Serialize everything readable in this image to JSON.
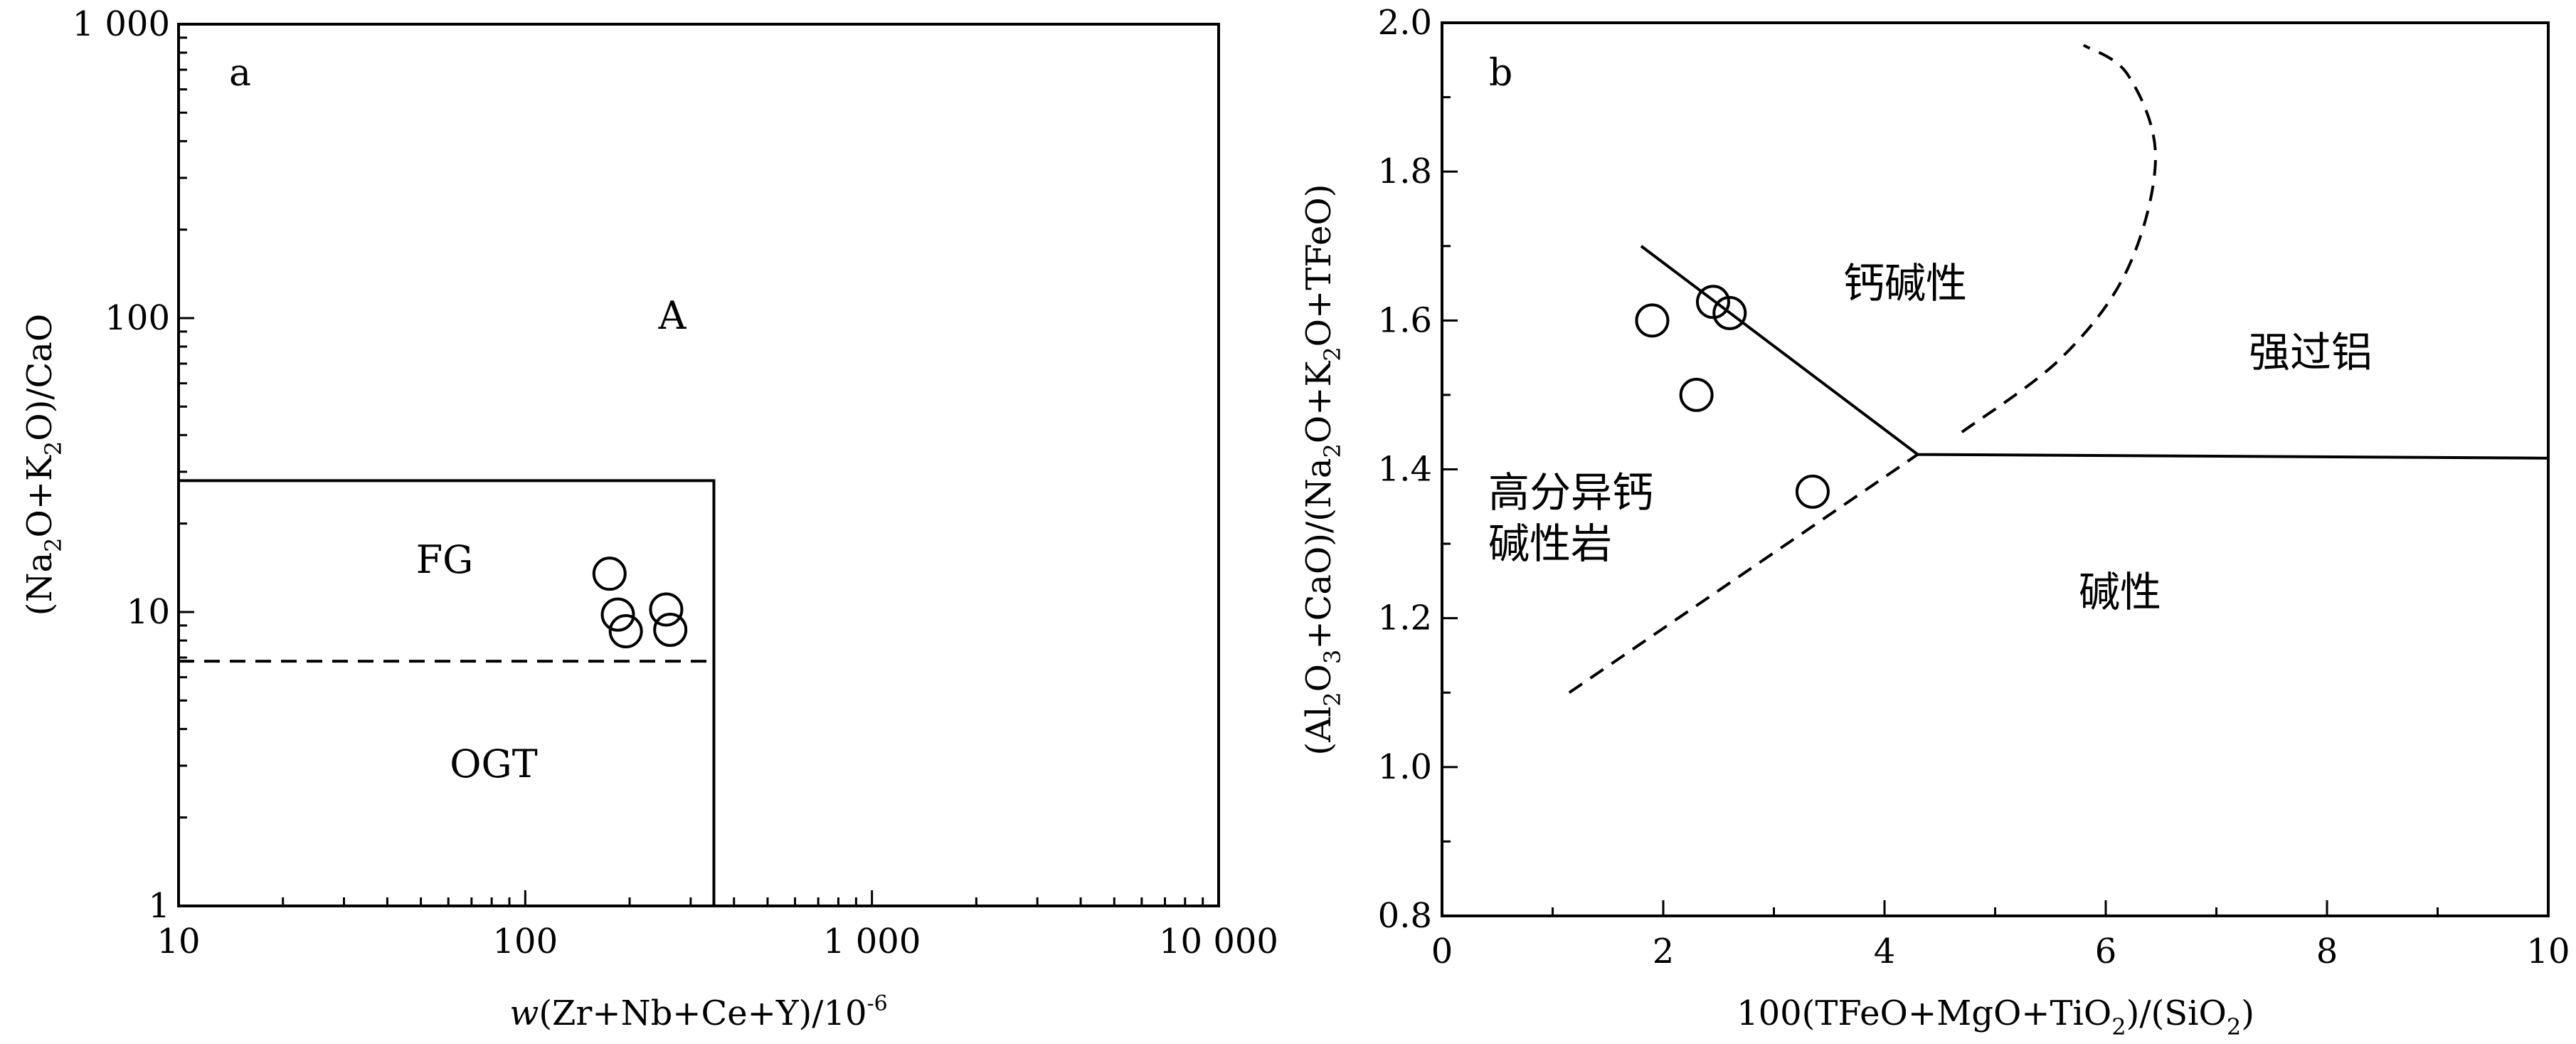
{
  "chart_data": [
    {
      "panel": "a",
      "type": "scatter",
      "xscale": "log",
      "yscale": "log",
      "xlim": [
        10,
        10000
      ],
      "ylim": [
        1,
        1000
      ],
      "x_ticks": [
        "10",
        "100",
        "1 000",
        "10 000"
      ],
      "y_ticks": [
        "1",
        "10",
        "100",
        "1 000"
      ],
      "xlabel": {
        "prefix": "w",
        "body": "(Zr+Nb+Ce+Y)/10",
        "sup": "-6"
      },
      "ylabel": [
        "(Na",
        "2",
        "O+K",
        "2",
        "O)/CaO"
      ],
      "regions": [
        "A",
        "FG",
        "OGT"
      ],
      "boundaries": [
        {
          "style": "solid",
          "points": [
            [
              10,
              28
            ],
            [
              350,
              28
            ],
            [
              350,
              1
            ]
          ]
        },
        {
          "style": "dashed",
          "points": [
            [
              10,
              6.8
            ],
            [
              350,
              6.8
            ]
          ]
        }
      ],
      "points": [
        {
          "x": 175,
          "y": 13.5
        },
        {
          "x": 185,
          "y": 9.8
        },
        {
          "x": 195,
          "y": 8.6
        },
        {
          "x": 255,
          "y": 10.2
        },
        {
          "x": 262,
          "y": 8.7
        }
      ]
    },
    {
      "panel": "b",
      "type": "scatter",
      "xlim": [
        0,
        10
      ],
      "ylim": [
        0.8,
        2.0
      ],
      "x_ticks": [
        "0",
        "2",
        "4",
        "6",
        "8",
        "10"
      ],
      "y_ticks": [
        "0.8",
        "1.0",
        "1.2",
        "1.4",
        "1.6",
        "1.8",
        "2.0"
      ],
      "xlabel": [
        "100(TFeO+MgO+TiO",
        "2",
        ")/(SiO",
        "2",
        ")"
      ],
      "ylabel": [
        "(Al",
        "2",
        "O",
        "3",
        "+CaO)/(Na",
        "2",
        "O+K",
        "2",
        "O+TFeO)"
      ],
      "regions": [
        "钙碱性",
        "强过铝",
        "高分异钙",
        "碱性岩",
        "碱性"
      ],
      "boundaries": [
        {
          "style": "solid",
          "points": [
            [
              1.8,
              1.7
            ],
            [
              4.3,
              1.42
            ],
            [
              10.0,
              1.415
            ]
          ]
        },
        {
          "style": "dashed",
          "points": [
            [
              1.15,
              1.1
            ],
            [
              4.3,
              1.42
            ]
          ]
        },
        {
          "style": "dashed",
          "points": [
            [
              4.7,
              1.45
            ],
            [
              5.6,
              1.55
            ],
            [
              6.2,
              1.67
            ],
            [
              6.45,
              1.82
            ],
            [
              6.2,
              1.93
            ],
            [
              5.8,
              1.97
            ]
          ]
        }
      ],
      "points": [
        {
          "x": 1.9,
          "y": 1.6
        },
        {
          "x": 2.3,
          "y": 1.5
        },
        {
          "x": 2.45,
          "y": 1.625
        },
        {
          "x": 2.6,
          "y": 1.61
        },
        {
          "x": 3.35,
          "y": 1.37
        }
      ]
    }
  ]
}
